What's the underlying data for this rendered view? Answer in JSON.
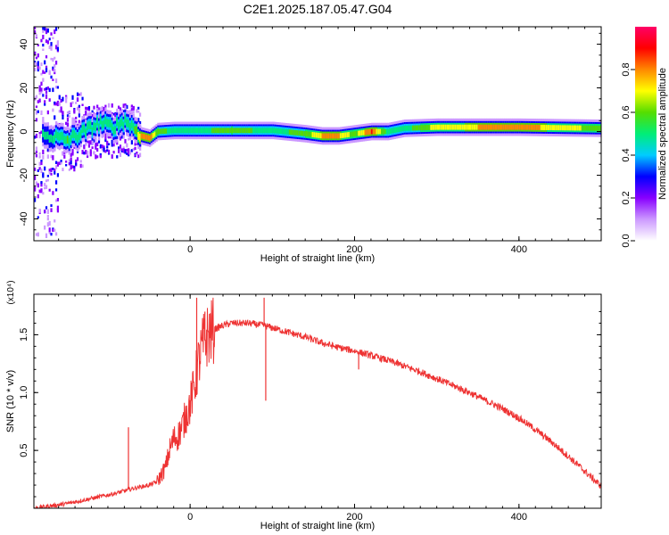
{
  "chart_data": [
    {
      "type": "heatmap",
      "title": "C2E1.2025.187.05.47.G04",
      "xlabel": "Height of straight line (km)",
      "ylabel": "Frequency (Hz)",
      "xlim": [
        -190,
        500
      ],
      "ylim": [
        -50,
        48
      ],
      "xticks": [
        0,
        200,
        400
      ],
      "yticks": [
        -40,
        -20,
        0,
        20,
        40
      ],
      "colorbar": {
        "label": "Normalized spectral amplitude",
        "range": [
          0,
          1
        ],
        "ticks": [
          "0.0",
          "0.2",
          "0.4",
          "0.6",
          "0.8"
        ],
        "colors": [
          "#ffffff",
          "#cc99ff",
          "#8800ff",
          "#0000ff",
          "#00ccff",
          "#00ee77",
          "#55dd00",
          "#ffff00",
          "#ff8800",
          "#ff0000",
          "#ff0066"
        ]
      },
      "ridge": {
        "x": [
          -170,
          -150,
          -130,
          -110,
          -95,
          -80,
          -70,
          -60,
          -50,
          -40,
          -20,
          0,
          50,
          100,
          140,
          160,
          180,
          200,
          220,
          240,
          260,
          300,
          400,
          500
        ],
        "frequency": [
          -2,
          -4,
          0,
          4,
          2,
          5,
          2,
          -2,
          -3,
          0,
          0.5,
          0.5,
          0.5,
          0.5,
          -1,
          -2,
          -2,
          -1,
          0,
          0,
          1.5,
          2,
          2,
          1.5
        ],
        "peak_amplitude": [
          0.45,
          0.55,
          0.5,
          0.5,
          0.55,
          0.5,
          0.5,
          0.8,
          0.8,
          0.6,
          0.5,
          0.5,
          0.6,
          0.5,
          0.6,
          0.75,
          0.75,
          0.6,
          0.85,
          0.5,
          0.5,
          0.7,
          0.8,
          0.6
        ]
      }
    },
    {
      "type": "line",
      "xlabel": "Height of straight line (km)",
      "ylabel": "SNR (10 * v/v)",
      "y_scale_label": "(x10⁴)",
      "xlim": [
        -190,
        500
      ],
      "ylim": [
        0,
        1.85
      ],
      "xticks": [
        0,
        200,
        400
      ],
      "yticks": [
        0.5,
        1.0,
        1.5
      ],
      "ytick_labels": [
        "0.5",
        "1.0",
        "1.5"
      ],
      "color": "#ee3333",
      "x": [
        -190,
        -170,
        -150,
        -130,
        -110,
        -90,
        -70,
        -50,
        -40,
        -30,
        -25,
        -20,
        -15,
        -10,
        -5,
        0,
        5,
        10,
        15,
        20,
        25,
        30,
        40,
        50,
        60,
        70,
        80,
        90,
        100,
        120,
        140,
        160,
        180,
        200,
        220,
        240,
        260,
        280,
        300,
        320,
        340,
        360,
        380,
        400,
        420,
        440,
        460,
        480,
        500
      ],
      "values": [
        0.0,
        0.02,
        0.04,
        0.07,
        0.1,
        0.13,
        0.17,
        0.2,
        0.23,
        0.35,
        0.5,
        0.6,
        0.62,
        0.7,
        0.8,
        0.9,
        1.05,
        1.25,
        1.4,
        1.48,
        1.52,
        1.55,
        1.58,
        1.6,
        1.6,
        1.6,
        1.59,
        1.58,
        1.56,
        1.52,
        1.48,
        1.43,
        1.39,
        1.36,
        1.32,
        1.28,
        1.23,
        1.18,
        1.12,
        1.06,
        1.0,
        0.93,
        0.86,
        0.78,
        0.68,
        0.57,
        0.45,
        0.32,
        0.19
      ],
      "spikes": [
        {
          "x": 8,
          "value": 1.82
        },
        {
          "x": 18,
          "value": 1.7
        },
        {
          "x": -75,
          "value": 0.7
        },
        {
          "x": 90,
          "value": 1.82
        },
        {
          "x": 92,
          "value": 0.93
        },
        {
          "x": 205,
          "value": 1.2
        }
      ]
    }
  ]
}
